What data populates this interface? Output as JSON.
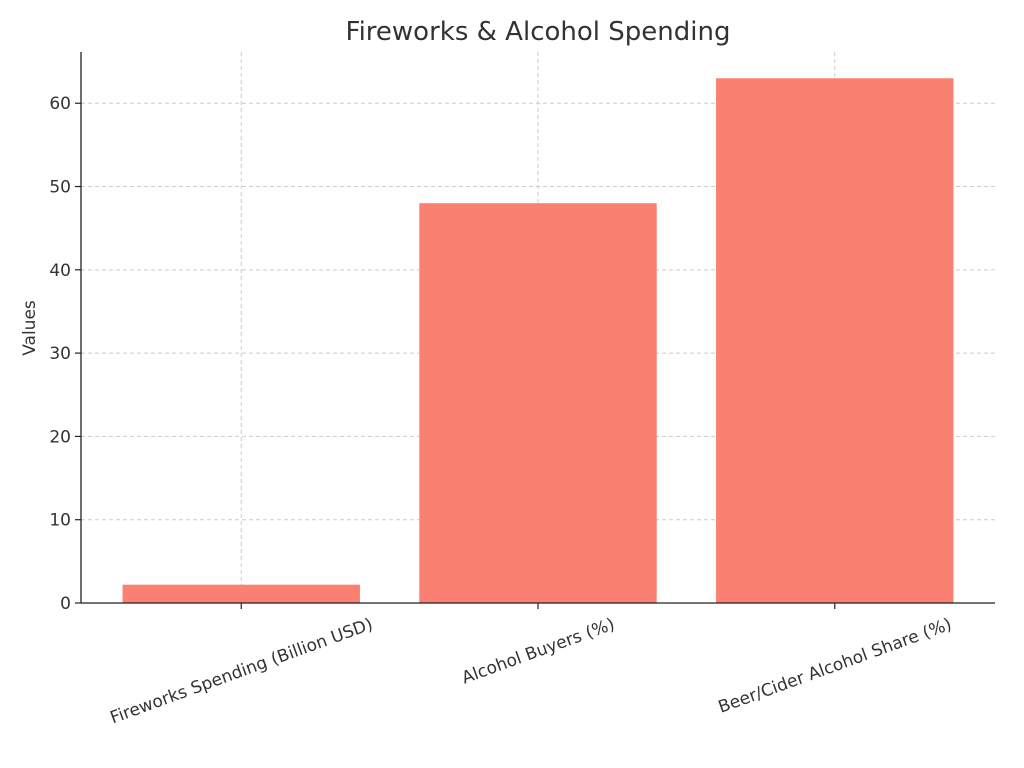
{
  "chart_data": {
    "type": "bar",
    "title": "Fireworks & Alcohol Spending",
    "ylabel": "Values",
    "categories": [
      "Fireworks Spending (Billion USD)",
      "Alcohol Buyers (%)",
      "Beer/Cider Alcohol Share (%)"
    ],
    "values": [
      2.2,
      48,
      63
    ],
    "color": "#fa8072",
    "ylim": [
      0,
      66.15
    ],
    "yticks": [
      0,
      10,
      20,
      30,
      40,
      50,
      60
    ],
    "grid": true
  }
}
